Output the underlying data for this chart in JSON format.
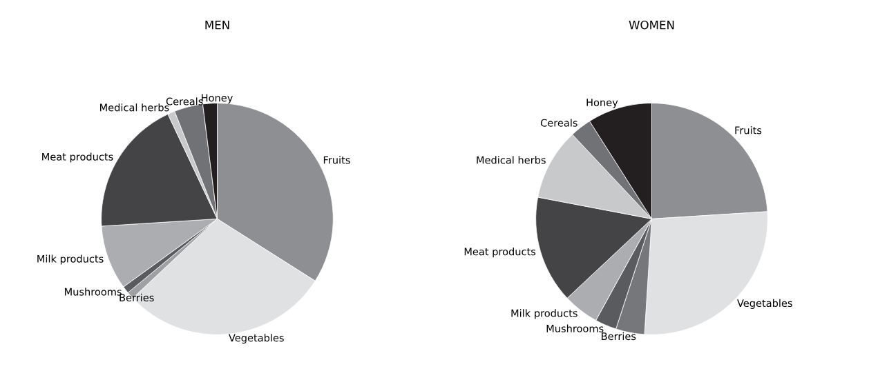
{
  "chart_data": [
    {
      "type": "pie",
      "title": "MEN",
      "categories": [
        "Fruits",
        "Vegetables",
        "Berries",
        "Mushrooms",
        "Milk products",
        "Meat products",
        "Medical herbs",
        "Cereals",
        "Honey"
      ],
      "values": [
        34,
        29,
        1,
        1,
        9,
        19,
        1,
        4,
        2
      ],
      "colors": [
        "#8e8f93",
        "#e0e1e3",
        "#9fa0a3",
        "#5a5b5e",
        "#acadb0",
        "#444447",
        "#c8c9cb",
        "#717276",
        "#231f20"
      ]
    },
    {
      "type": "pie",
      "title": "WOMEN",
      "categories": [
        "Fruits",
        "Vegetables",
        "Berries",
        "Mushrooms",
        "Milk products",
        "Meat products",
        "Medical herbs",
        "Cereals",
        "Honey"
      ],
      "values": [
        24,
        27,
        4,
        3,
        5,
        15,
        10,
        3,
        9
      ],
      "colors": [
        "#8e8f93",
        "#e0e1e3",
        "#76777b",
        "#5a5b5e",
        "#acadb0",
        "#444447",
        "#c8c9cb",
        "#717276",
        "#231f20"
      ]
    }
  ]
}
